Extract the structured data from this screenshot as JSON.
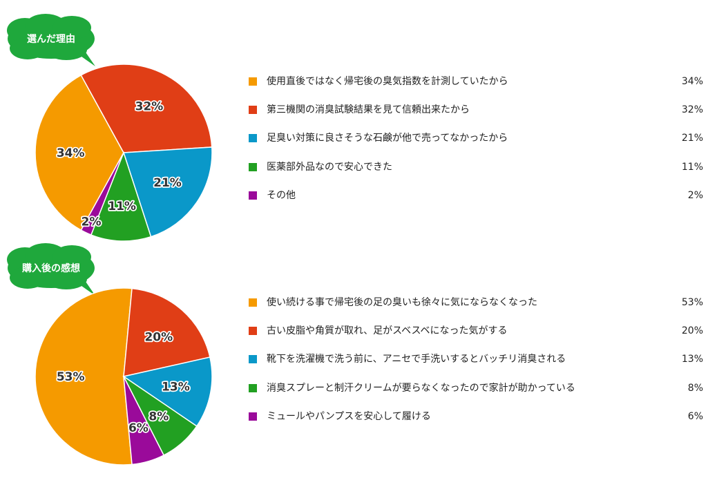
{
  "chart_data": [
    {
      "type": "pie",
      "title": "選んだ理由",
      "categories": [
        "使用直後ではなく帰宅後の臭気指数を計測していたから",
        "第三機関の消臭試験結果を見て信頼出来たから",
        "足臭い対策に良さそうな石鹸が他で売ってなかったから",
        "医薬部外品なので安心できた",
        "その他"
      ],
      "values": [
        34,
        32,
        21,
        11,
        2
      ],
      "value_labels": [
        "34%",
        "32%",
        "21%",
        "11%",
        "2%"
      ],
      "colors": [
        "#f59a00",
        "#e03e16",
        "#0a98c9",
        "#22a022",
        "#9a0a9a"
      ],
      "legend": "right"
    },
    {
      "type": "pie",
      "title": "購入後の感想",
      "categories": [
        "使い続ける事で帰宅後の足の臭いも徐々に気にならなくなった",
        "古い皮脂や角質が取れ、足がスベスベになった気がする",
        "靴下を洗濯機で洗う前に、アニセで手洗いするとバッチリ消臭される",
        "消臭スプレーと制汗クリームが要らなくなったので家計が助かっている",
        "ミュールやパンプスを安心して履ける"
      ],
      "values": [
        53,
        20,
        13,
        8,
        6
      ],
      "value_labels": [
        "53%",
        "20%",
        "13%",
        "8%",
        "6%"
      ],
      "colors": [
        "#f59a00",
        "#e03e16",
        "#0a98c9",
        "#22a022",
        "#9a0a9a"
      ],
      "legend": "right"
    }
  ],
  "badge_color": "#1fa83c"
}
